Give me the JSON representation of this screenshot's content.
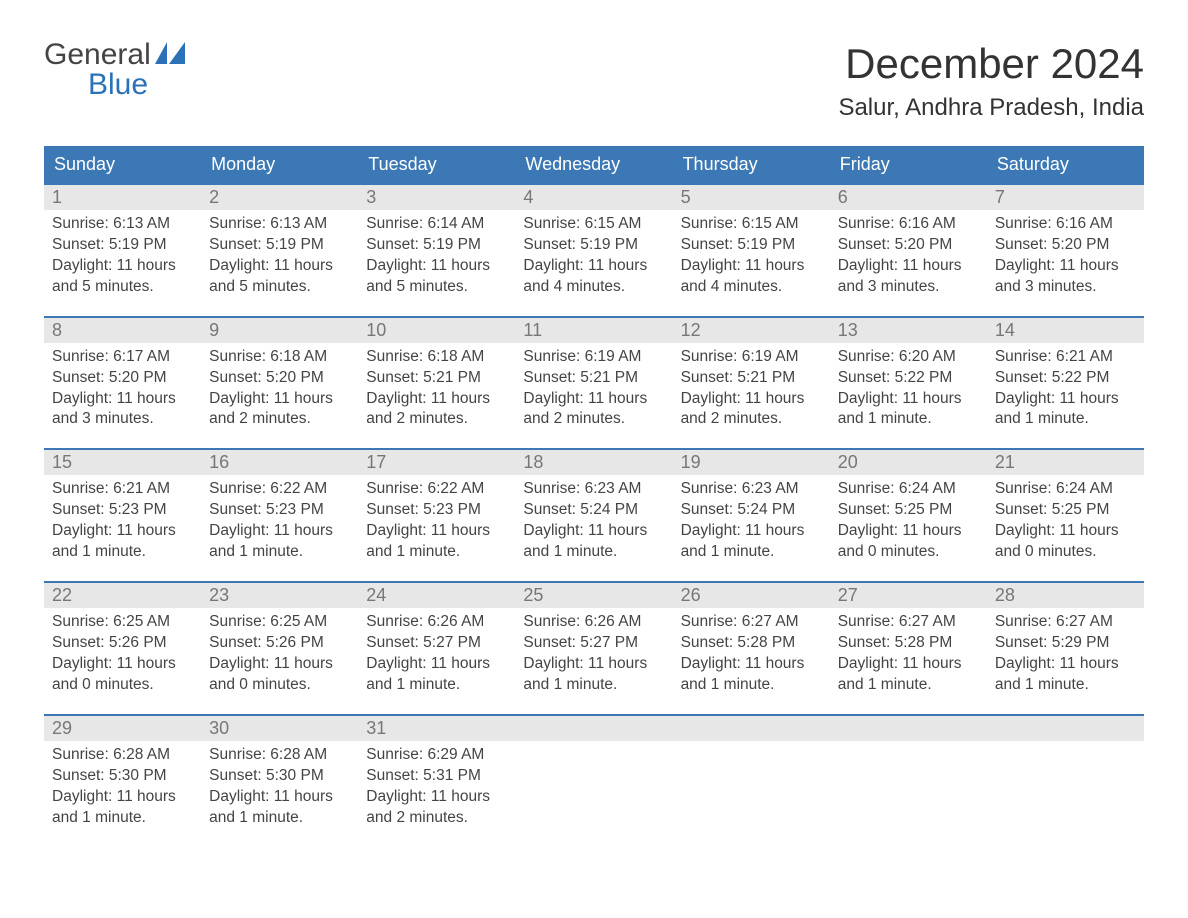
{
  "brand": {
    "line1": "General",
    "line2": "Blue"
  },
  "title": "December 2024",
  "location": "Salur, Andhra Pradesh, India",
  "colors": {
    "header_bg": "#3b78b5",
    "header_text": "#ffffff",
    "daynum_bg": "#e7e7e7",
    "daynum_text": "#777777",
    "text": "#444444",
    "brand_accent": "#2a71b8",
    "week_border": "#3b78b5",
    "background": "#ffffff"
  },
  "typography": {
    "title_fontsize": 42,
    "location_fontsize": 24,
    "dayhead_fontsize": 18,
    "daynum_fontsize": 18,
    "cell_fontsize": 15.5,
    "logo_fontsize": 30
  },
  "day_headers": [
    "Sunday",
    "Monday",
    "Tuesday",
    "Wednesday",
    "Thursday",
    "Friday",
    "Saturday"
  ],
  "weeks": [
    [
      {
        "n": "1",
        "sunrise": "Sunrise: 6:13 AM",
        "sunset": "Sunset: 5:19 PM",
        "d1": "Daylight: 11 hours",
        "d2": "and 5 minutes."
      },
      {
        "n": "2",
        "sunrise": "Sunrise: 6:13 AM",
        "sunset": "Sunset: 5:19 PM",
        "d1": "Daylight: 11 hours",
        "d2": "and 5 minutes."
      },
      {
        "n": "3",
        "sunrise": "Sunrise: 6:14 AM",
        "sunset": "Sunset: 5:19 PM",
        "d1": "Daylight: 11 hours",
        "d2": "and 5 minutes."
      },
      {
        "n": "4",
        "sunrise": "Sunrise: 6:15 AM",
        "sunset": "Sunset: 5:19 PM",
        "d1": "Daylight: 11 hours",
        "d2": "and 4 minutes."
      },
      {
        "n": "5",
        "sunrise": "Sunrise: 6:15 AM",
        "sunset": "Sunset: 5:19 PM",
        "d1": "Daylight: 11 hours",
        "d2": "and 4 minutes."
      },
      {
        "n": "6",
        "sunrise": "Sunrise: 6:16 AM",
        "sunset": "Sunset: 5:20 PM",
        "d1": "Daylight: 11 hours",
        "d2": "and 3 minutes."
      },
      {
        "n": "7",
        "sunrise": "Sunrise: 6:16 AM",
        "sunset": "Sunset: 5:20 PM",
        "d1": "Daylight: 11 hours",
        "d2": "and 3 minutes."
      }
    ],
    [
      {
        "n": "8",
        "sunrise": "Sunrise: 6:17 AM",
        "sunset": "Sunset: 5:20 PM",
        "d1": "Daylight: 11 hours",
        "d2": "and 3 minutes."
      },
      {
        "n": "9",
        "sunrise": "Sunrise: 6:18 AM",
        "sunset": "Sunset: 5:20 PM",
        "d1": "Daylight: 11 hours",
        "d2": "and 2 minutes."
      },
      {
        "n": "10",
        "sunrise": "Sunrise: 6:18 AM",
        "sunset": "Sunset: 5:21 PM",
        "d1": "Daylight: 11 hours",
        "d2": "and 2 minutes."
      },
      {
        "n": "11",
        "sunrise": "Sunrise: 6:19 AM",
        "sunset": "Sunset: 5:21 PM",
        "d1": "Daylight: 11 hours",
        "d2": "and 2 minutes."
      },
      {
        "n": "12",
        "sunrise": "Sunrise: 6:19 AM",
        "sunset": "Sunset: 5:21 PM",
        "d1": "Daylight: 11 hours",
        "d2": "and 2 minutes."
      },
      {
        "n": "13",
        "sunrise": "Sunrise: 6:20 AM",
        "sunset": "Sunset: 5:22 PM",
        "d1": "Daylight: 11 hours",
        "d2": "and 1 minute."
      },
      {
        "n": "14",
        "sunrise": "Sunrise: 6:21 AM",
        "sunset": "Sunset: 5:22 PM",
        "d1": "Daylight: 11 hours",
        "d2": "and 1 minute."
      }
    ],
    [
      {
        "n": "15",
        "sunrise": "Sunrise: 6:21 AM",
        "sunset": "Sunset: 5:23 PM",
        "d1": "Daylight: 11 hours",
        "d2": "and 1 minute."
      },
      {
        "n": "16",
        "sunrise": "Sunrise: 6:22 AM",
        "sunset": "Sunset: 5:23 PM",
        "d1": "Daylight: 11 hours",
        "d2": "and 1 minute."
      },
      {
        "n": "17",
        "sunrise": "Sunrise: 6:22 AM",
        "sunset": "Sunset: 5:23 PM",
        "d1": "Daylight: 11 hours",
        "d2": "and 1 minute."
      },
      {
        "n": "18",
        "sunrise": "Sunrise: 6:23 AM",
        "sunset": "Sunset: 5:24 PM",
        "d1": "Daylight: 11 hours",
        "d2": "and 1 minute."
      },
      {
        "n": "19",
        "sunrise": "Sunrise: 6:23 AM",
        "sunset": "Sunset: 5:24 PM",
        "d1": "Daylight: 11 hours",
        "d2": "and 1 minute."
      },
      {
        "n": "20",
        "sunrise": "Sunrise: 6:24 AM",
        "sunset": "Sunset: 5:25 PM",
        "d1": "Daylight: 11 hours",
        "d2": "and 0 minutes."
      },
      {
        "n": "21",
        "sunrise": "Sunrise: 6:24 AM",
        "sunset": "Sunset: 5:25 PM",
        "d1": "Daylight: 11 hours",
        "d2": "and 0 minutes."
      }
    ],
    [
      {
        "n": "22",
        "sunrise": "Sunrise: 6:25 AM",
        "sunset": "Sunset: 5:26 PM",
        "d1": "Daylight: 11 hours",
        "d2": "and 0 minutes."
      },
      {
        "n": "23",
        "sunrise": "Sunrise: 6:25 AM",
        "sunset": "Sunset: 5:26 PM",
        "d1": "Daylight: 11 hours",
        "d2": "and 0 minutes."
      },
      {
        "n": "24",
        "sunrise": "Sunrise: 6:26 AM",
        "sunset": "Sunset: 5:27 PM",
        "d1": "Daylight: 11 hours",
        "d2": "and 1 minute."
      },
      {
        "n": "25",
        "sunrise": "Sunrise: 6:26 AM",
        "sunset": "Sunset: 5:27 PM",
        "d1": "Daylight: 11 hours",
        "d2": "and 1 minute."
      },
      {
        "n": "26",
        "sunrise": "Sunrise: 6:27 AM",
        "sunset": "Sunset: 5:28 PM",
        "d1": "Daylight: 11 hours",
        "d2": "and 1 minute."
      },
      {
        "n": "27",
        "sunrise": "Sunrise: 6:27 AM",
        "sunset": "Sunset: 5:28 PM",
        "d1": "Daylight: 11 hours",
        "d2": "and 1 minute."
      },
      {
        "n": "28",
        "sunrise": "Sunrise: 6:27 AM",
        "sunset": "Sunset: 5:29 PM",
        "d1": "Daylight: 11 hours",
        "d2": "and 1 minute."
      }
    ],
    [
      {
        "n": "29",
        "sunrise": "Sunrise: 6:28 AM",
        "sunset": "Sunset: 5:30 PM",
        "d1": "Daylight: 11 hours",
        "d2": "and 1 minute."
      },
      {
        "n": "30",
        "sunrise": "Sunrise: 6:28 AM",
        "sunset": "Sunset: 5:30 PM",
        "d1": "Daylight: 11 hours",
        "d2": "and 1 minute."
      },
      {
        "n": "31",
        "sunrise": "Sunrise: 6:29 AM",
        "sunset": "Sunset: 5:31 PM",
        "d1": "Daylight: 11 hours",
        "d2": "and 2 minutes."
      },
      {
        "n": "",
        "sunrise": "",
        "sunset": "",
        "d1": "",
        "d2": ""
      },
      {
        "n": "",
        "sunrise": "",
        "sunset": "",
        "d1": "",
        "d2": ""
      },
      {
        "n": "",
        "sunrise": "",
        "sunset": "",
        "d1": "",
        "d2": ""
      },
      {
        "n": "",
        "sunrise": "",
        "sunset": "",
        "d1": "",
        "d2": ""
      }
    ]
  ]
}
